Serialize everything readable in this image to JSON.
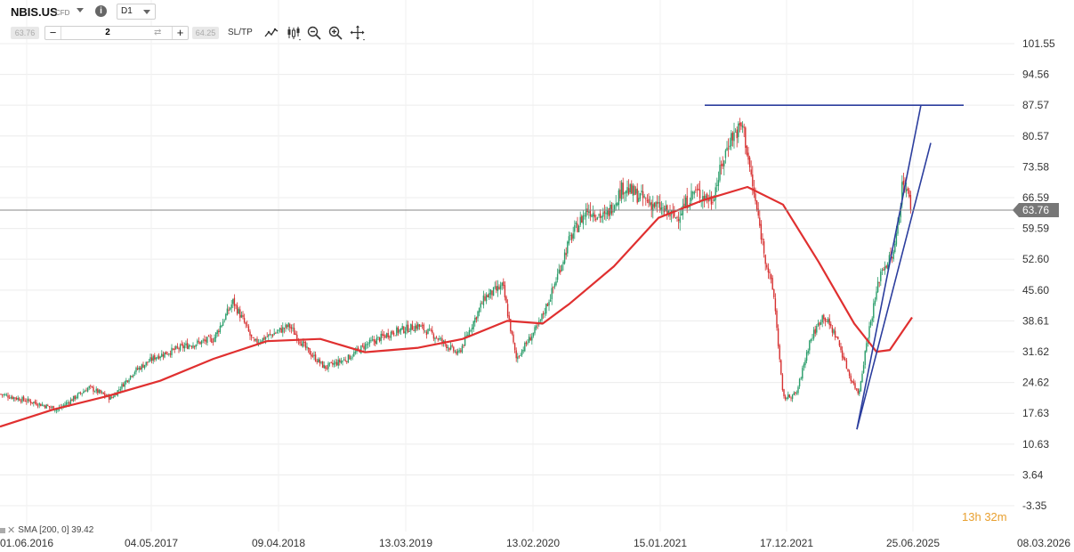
{
  "toolbar": {
    "symbol": "NBIS.US",
    "symbol_type": "CFD",
    "info_label": "i",
    "timeframe": "D1",
    "bid": "63.76",
    "ask": "64.25",
    "quantity": "2",
    "minus": "−",
    "plus": "+",
    "swap_glyph": "⇄",
    "sltp": "SL/TP",
    "icons": [
      "line-chart-icon",
      "candlestick-icon",
      "zoom-out-icon",
      "zoom-in-icon",
      "crosshair-icon"
    ]
  },
  "price_axis": [
    "101.55",
    "94.56",
    "87.57",
    "80.57",
    "73.58",
    "66.59",
    "59.59",
    "52.60",
    "45.60",
    "38.61",
    "31.62",
    "24.62",
    "17.63",
    "10.63",
    "3.64",
    "-3.35"
  ],
  "date_axis": [
    "01.06.2016",
    "04.05.2017",
    "09.04.2018",
    "13.03.2019",
    "13.02.2020",
    "15.01.2021",
    "17.12.2021",
    "25.06.2025",
    "08.03.2026"
  ],
  "current_price": "63.76",
  "indicator": {
    "label": "SMA [200, 0] 39.42",
    "close": "✕"
  },
  "timer": {
    "hours": "13",
    "h": "h",
    "minutes": "32",
    "m": "m"
  },
  "colors": {
    "sma": "#e03030",
    "bull": "#2a9d6a",
    "bear": "#d63030",
    "trendline": "#2c3e9e",
    "current_line": "#888888",
    "price_tag": "#777777"
  },
  "chart_data": {
    "type": "candlestick",
    "symbol": "NBIS.US",
    "timeframe": "D1",
    "x_ticks": [
      "01.06.2016",
      "04.05.2017",
      "09.04.2018",
      "13.03.2019",
      "13.02.2020",
      "15.01.2021",
      "17.12.2021",
      "25.06.2025",
      "08.03.2026"
    ],
    "y_ticks": [
      101.55,
      94.56,
      87.57,
      80.57,
      73.58,
      66.59,
      59.59,
      52.6,
      45.6,
      38.61,
      31.62,
      24.62,
      17.63,
      10.63,
      3.64,
      -3.35
    ],
    "ylim": [
      -3.35,
      101.55
    ],
    "current_price": 63.76,
    "price_path": [
      [
        0,
        22.0
      ],
      [
        40,
        20.0
      ],
      [
        65,
        18.5
      ],
      [
        100,
        23.5
      ],
      [
        125,
        21.0
      ],
      [
        150,
        27.0
      ],
      [
        175,
        30.5
      ],
      [
        210,
        33.0
      ],
      [
        240,
        34.5
      ],
      [
        262,
        43.0
      ],
      [
        275,
        38.0
      ],
      [
        285,
        33.5
      ],
      [
        310,
        36.0
      ],
      [
        325,
        37.5
      ],
      [
        345,
        32.0
      ],
      [
        365,
        28.0
      ],
      [
        390,
        30.0
      ],
      [
        410,
        33.0
      ],
      [
        440,
        36.0
      ],
      [
        470,
        37.5
      ],
      [
        490,
        35.0
      ],
      [
        515,
        31.0
      ],
      [
        545,
        44.0
      ],
      [
        565,
        46.5
      ],
      [
        580,
        30.0
      ],
      [
        605,
        37.5
      ],
      [
        620,
        45.0
      ],
      [
        640,
        57.0
      ],
      [
        660,
        64.0
      ],
      [
        680,
        62.0
      ],
      [
        700,
        69.0
      ],
      [
        730,
        65.5
      ],
      [
        760,
        62.0
      ],
      [
        780,
        68.0
      ],
      [
        800,
        66.0
      ],
      [
        820,
        80.0
      ],
      [
        835,
        83.0
      ],
      [
        845,
        70.0
      ],
      [
        860,
        53.0
      ],
      [
        870,
        44.0
      ],
      [
        880,
        21.0
      ],
      [
        895,
        22.0
      ],
      [
        910,
        34.0
      ],
      [
        925,
        40.0
      ],
      [
        940,
        35.0
      ],
      [
        955,
        26.0
      ],
      [
        965,
        22.0
      ],
      [
        975,
        35.0
      ],
      [
        990,
        50.0
      ],
      [
        1005,
        54.0
      ],
      [
        1015,
        71.0
      ],
      [
        1025,
        63.76
      ]
    ],
    "sma_path": [
      [
        0,
        14.6
      ],
      [
        60,
        18.5
      ],
      [
        120,
        21.5
      ],
      [
        180,
        25.0
      ],
      [
        240,
        30.0
      ],
      [
        300,
        34.0
      ],
      [
        360,
        34.5
      ],
      [
        410,
        31.5
      ],
      [
        470,
        32.5
      ],
      [
        520,
        34.5
      ],
      [
        570,
        38.6
      ],
      [
        610,
        38.0
      ],
      [
        640,
        42.5
      ],
      [
        690,
        51.0
      ],
      [
        740,
        62.0
      ],
      [
        790,
        66.0
      ],
      [
        840,
        69.0
      ],
      [
        880,
        65.0
      ],
      [
        920,
        52.0
      ],
      [
        960,
        38.0
      ],
      [
        985,
        31.6
      ],
      [
        1000,
        32.0
      ],
      [
        1025,
        39.4
      ]
    ],
    "sma": {
      "name": "SMA [200, 0]",
      "last": 39.42
    },
    "drawings": {
      "horizontal_level": 87.57,
      "channel_upper": [
        [
          963,
          14.0
        ],
        [
          1035,
          87.6
        ]
      ],
      "channel_lower": [
        [
          963,
          14.0
        ],
        [
          1046,
          79.0
        ]
      ]
    }
  }
}
